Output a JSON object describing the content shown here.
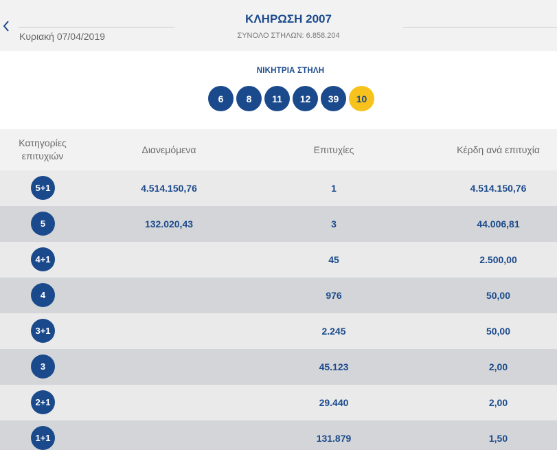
{
  "header": {
    "back_icon": "chevron-left-icon",
    "date": "Κυριακή 07/04/2019",
    "title": "ΚΛΗΡΩΣΗ 2007",
    "total_columns": "ΣΥΝΟΛΟ ΣΤΗΛΩΝ: 6.858.204"
  },
  "winning": {
    "label": "ΝΙΚΗΤΡΙΑ ΣΤΗΛΗ",
    "numbers": [
      "6",
      "8",
      "11",
      "12",
      "39"
    ],
    "joker": "10"
  },
  "colors": {
    "primary": "#1b4a8c",
    "joker": "#f7c21c",
    "row_light": "#eaeaea",
    "row_dark": "#d3d5d8"
  },
  "table": {
    "headers": {
      "category": "Κατηγορίες επιτυχιών",
      "distributed": "Διανεμόμενα",
      "successes": "Επιτυχίες",
      "prize": "Κέρδη ανά επιτυχία"
    },
    "rows": [
      {
        "category": "5+1",
        "distributed": "4.514.150,76",
        "successes": "1",
        "prize": "4.514.150,76"
      },
      {
        "category": "5",
        "distributed": "132.020,43",
        "successes": "3",
        "prize": "44.006,81"
      },
      {
        "category": "4+1",
        "distributed": "",
        "successes": "45",
        "prize": "2.500,00"
      },
      {
        "category": "4",
        "distributed": "",
        "successes": "976",
        "prize": "50,00"
      },
      {
        "category": "3+1",
        "distributed": "",
        "successes": "2.245",
        "prize": "50,00"
      },
      {
        "category": "3",
        "distributed": "",
        "successes": "45.123",
        "prize": "2,00"
      },
      {
        "category": "2+1",
        "distributed": "",
        "successes": "29.440",
        "prize": "2,00"
      },
      {
        "category": "1+1",
        "distributed": "",
        "successes": "131.879",
        "prize": "1,50"
      }
    ]
  }
}
